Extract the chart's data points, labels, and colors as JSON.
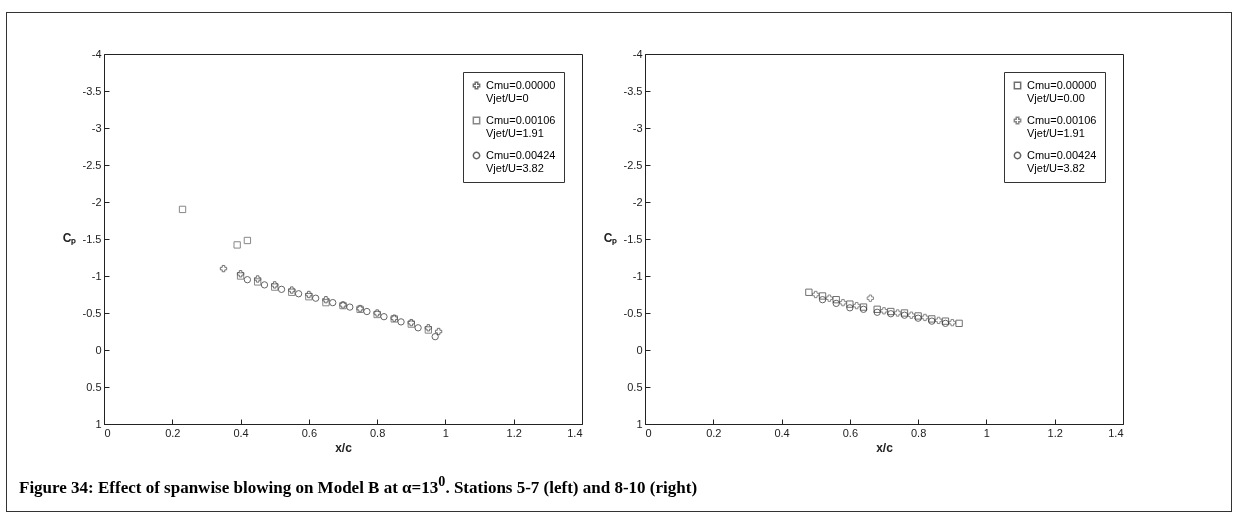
{
  "chart_data": [
    {
      "type": "scatter",
      "xlabel": "x/c",
      "ylabel": "Cₚ",
      "xlim": [
        0,
        1.4
      ],
      "ylim": [
        1,
        -4
      ],
      "xticks": [
        0,
        0.2,
        0.4,
        0.6,
        0.8,
        1,
        1.2,
        1.4
      ],
      "yticks": [
        -4,
        -3.5,
        -3,
        -2.5,
        -2,
        -1.5,
        -1,
        -0.5,
        0,
        0.5,
        1
      ],
      "legend": "top right",
      "series": [
        {
          "name": "Cmu=0.00000\nVjet/U=0",
          "color": "#333333",
          "marker": "cross",
          "x": [
            0.35,
            0.4,
            0.45,
            0.5,
            0.55,
            0.6,
            0.65,
            0.7,
            0.75,
            0.8,
            0.85,
            0.9,
            0.95,
            0.98
          ],
          "values": [
            -1.1,
            -1.03,
            -0.96,
            -0.88,
            -0.81,
            -0.75,
            -0.68,
            -0.61,
            -0.56,
            -0.5,
            -0.43,
            -0.37,
            -0.3,
            -0.25
          ]
        },
        {
          "name": "Cmu=0.00106\nVjet/U=1.91",
          "color": "#555555",
          "marker": "square",
          "x": [
            0.23,
            0.39,
            0.42,
            0.4,
            0.45,
            0.5,
            0.55,
            0.6,
            0.65,
            0.7,
            0.75,
            0.8,
            0.85,
            0.9,
            0.95
          ],
          "values": [
            -1.9,
            -1.42,
            -1.48,
            -1.0,
            -0.92,
            -0.85,
            -0.78,
            -0.72,
            -0.64,
            -0.6,
            -0.55,
            -0.48,
            -0.42,
            -0.35,
            -0.27
          ]
        },
        {
          "name": "Cmu=0.00424\nVjet/U=3.82",
          "color": "#222222",
          "marker": "circle",
          "x": [
            0.42,
            0.47,
            0.52,
            0.57,
            0.62,
            0.67,
            0.72,
            0.77,
            0.82,
            0.87,
            0.92,
            0.97
          ],
          "values": [
            -0.95,
            -0.88,
            -0.82,
            -0.76,
            -0.7,
            -0.64,
            -0.58,
            -0.52,
            -0.45,
            -0.38,
            -0.3,
            -0.18
          ]
        }
      ],
      "annotations": [
        "Figure 34: Effect of spanwise blowing on Model B at α=13$^{0}$. Stations 5-7 (left) and 8-10 (right)"
      ]
    },
    {
      "type": "scatter",
      "xlabel": "x/c",
      "ylabel": "Cₚ",
      "xlim": [
        0,
        1.4
      ],
      "ylim": [
        1,
        -4
      ],
      "xticks": [
        0,
        0.2,
        0.4,
        0.6,
        0.8,
        1,
        1.2,
        1.4
      ],
      "yticks": [
        -4,
        -3.5,
        -3,
        -2.5,
        -2,
        -1.5,
        -1,
        -0.5,
        0,
        0.5,
        1
      ],
      "legend": "top right",
      "series": [
        {
          "name": "Cmu=0.00000\nVjet/U=0.00",
          "color": "#333333",
          "marker": "square",
          "x": [
            0.48,
            0.52,
            0.56,
            0.6,
            0.64,
            0.68,
            0.72,
            0.76,
            0.8,
            0.84,
            0.88,
            0.92
          ],
          "values": [
            -0.78,
            -0.73,
            -0.68,
            -0.62,
            -0.58,
            -0.55,
            -0.52,
            -0.5,
            -0.46,
            -0.42,
            -0.39,
            -0.36
          ]
        },
        {
          "name": "Cmu=0.00106\nVjet/U=1.91",
          "color": "#555555",
          "marker": "cross",
          "x": [
            0.5,
            0.54,
            0.58,
            0.62,
            0.66,
            0.7,
            0.74,
            0.78,
            0.82,
            0.86,
            0.9
          ],
          "values": [
            -0.75,
            -0.7,
            -0.64,
            -0.6,
            -0.7,
            -0.53,
            -0.5,
            -0.47,
            -0.44,
            -0.4,
            -0.37
          ]
        },
        {
          "name": "Cmu=0.00424\nVjet/U=3.82",
          "color": "#222222",
          "marker": "circle",
          "x": [
            0.52,
            0.56,
            0.6,
            0.64,
            0.68,
            0.72,
            0.76,
            0.8,
            0.84,
            0.88
          ],
          "values": [
            -0.68,
            -0.63,
            -0.57,
            -0.55,
            -0.51,
            -0.49,
            -0.47,
            -0.43,
            -0.39,
            -0.36
          ]
        }
      ]
    }
  ]
}
